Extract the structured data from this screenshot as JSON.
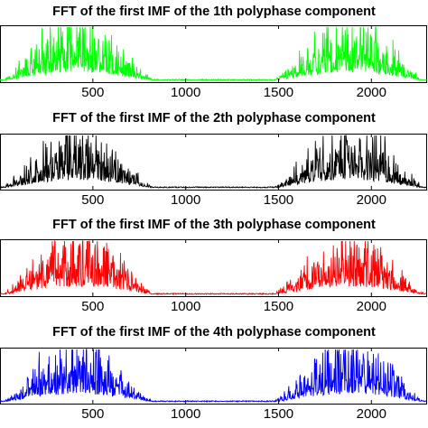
{
  "chart_data": [
    {
      "type": "line",
      "title": "FFT of the first IMF of the 1th polyphase component",
      "xlabel": "",
      "ylabel": "",
      "xlim": [
        0,
        2300
      ],
      "xticks": [
        500,
        1000,
        1500,
        2000
      ],
      "xtick_labels": [
        "500",
        "1000",
        "1500",
        "2000"
      ],
      "color": "#00ff00",
      "series_shape": {
        "lobes_center_x": [
          420,
          1880
        ],
        "lobe_half_width": 420,
        "peak_relative_amplitude": 1.0
      },
      "grid": false,
      "legend": "none"
    },
    {
      "type": "line",
      "title": "FFT of the first IMF of the 2th polyphase component",
      "xlabel": "",
      "ylabel": "",
      "xlim": [
        0,
        2300
      ],
      "xticks": [
        500,
        1000,
        1500,
        2000
      ],
      "xtick_labels": [
        "500",
        "1000",
        "1500",
        "2000"
      ],
      "color": "#000000",
      "series_shape": {
        "lobes_center_x": [
          420,
          1880
        ],
        "lobe_half_width": 420,
        "peak_relative_amplitude": 1.0
      },
      "grid": false,
      "legend": "none"
    },
    {
      "type": "line",
      "title": "FFT of the first IMF of the 3th polyphase component",
      "xlabel": "",
      "ylabel": "",
      "xlim": [
        0,
        2300
      ],
      "xticks": [
        500,
        1000,
        1500,
        2000
      ],
      "xtick_labels": [
        "500",
        "1000",
        "1500",
        "2000"
      ],
      "color": "#ff0000",
      "series_shape": {
        "lobes_center_x": [
          420,
          1880
        ],
        "lobe_half_width": 420,
        "peak_relative_amplitude": 1.0
      },
      "grid": false,
      "legend": "none"
    },
    {
      "type": "line",
      "title": "FFT of the first IMF of the 4th polyphase component",
      "xlabel": "",
      "ylabel": "",
      "xlim": [
        0,
        2300
      ],
      "xticks": [
        500,
        1000,
        1500,
        2000
      ],
      "xtick_labels": [
        "500",
        "1000",
        "1500",
        "2000"
      ],
      "color": "#0000ff",
      "series_shape": {
        "lobes_center_x": [
          420,
          1880
        ],
        "lobe_half_width": 420,
        "peak_relative_amplitude": 1.0
      },
      "grid": false,
      "legend": "none"
    }
  ]
}
